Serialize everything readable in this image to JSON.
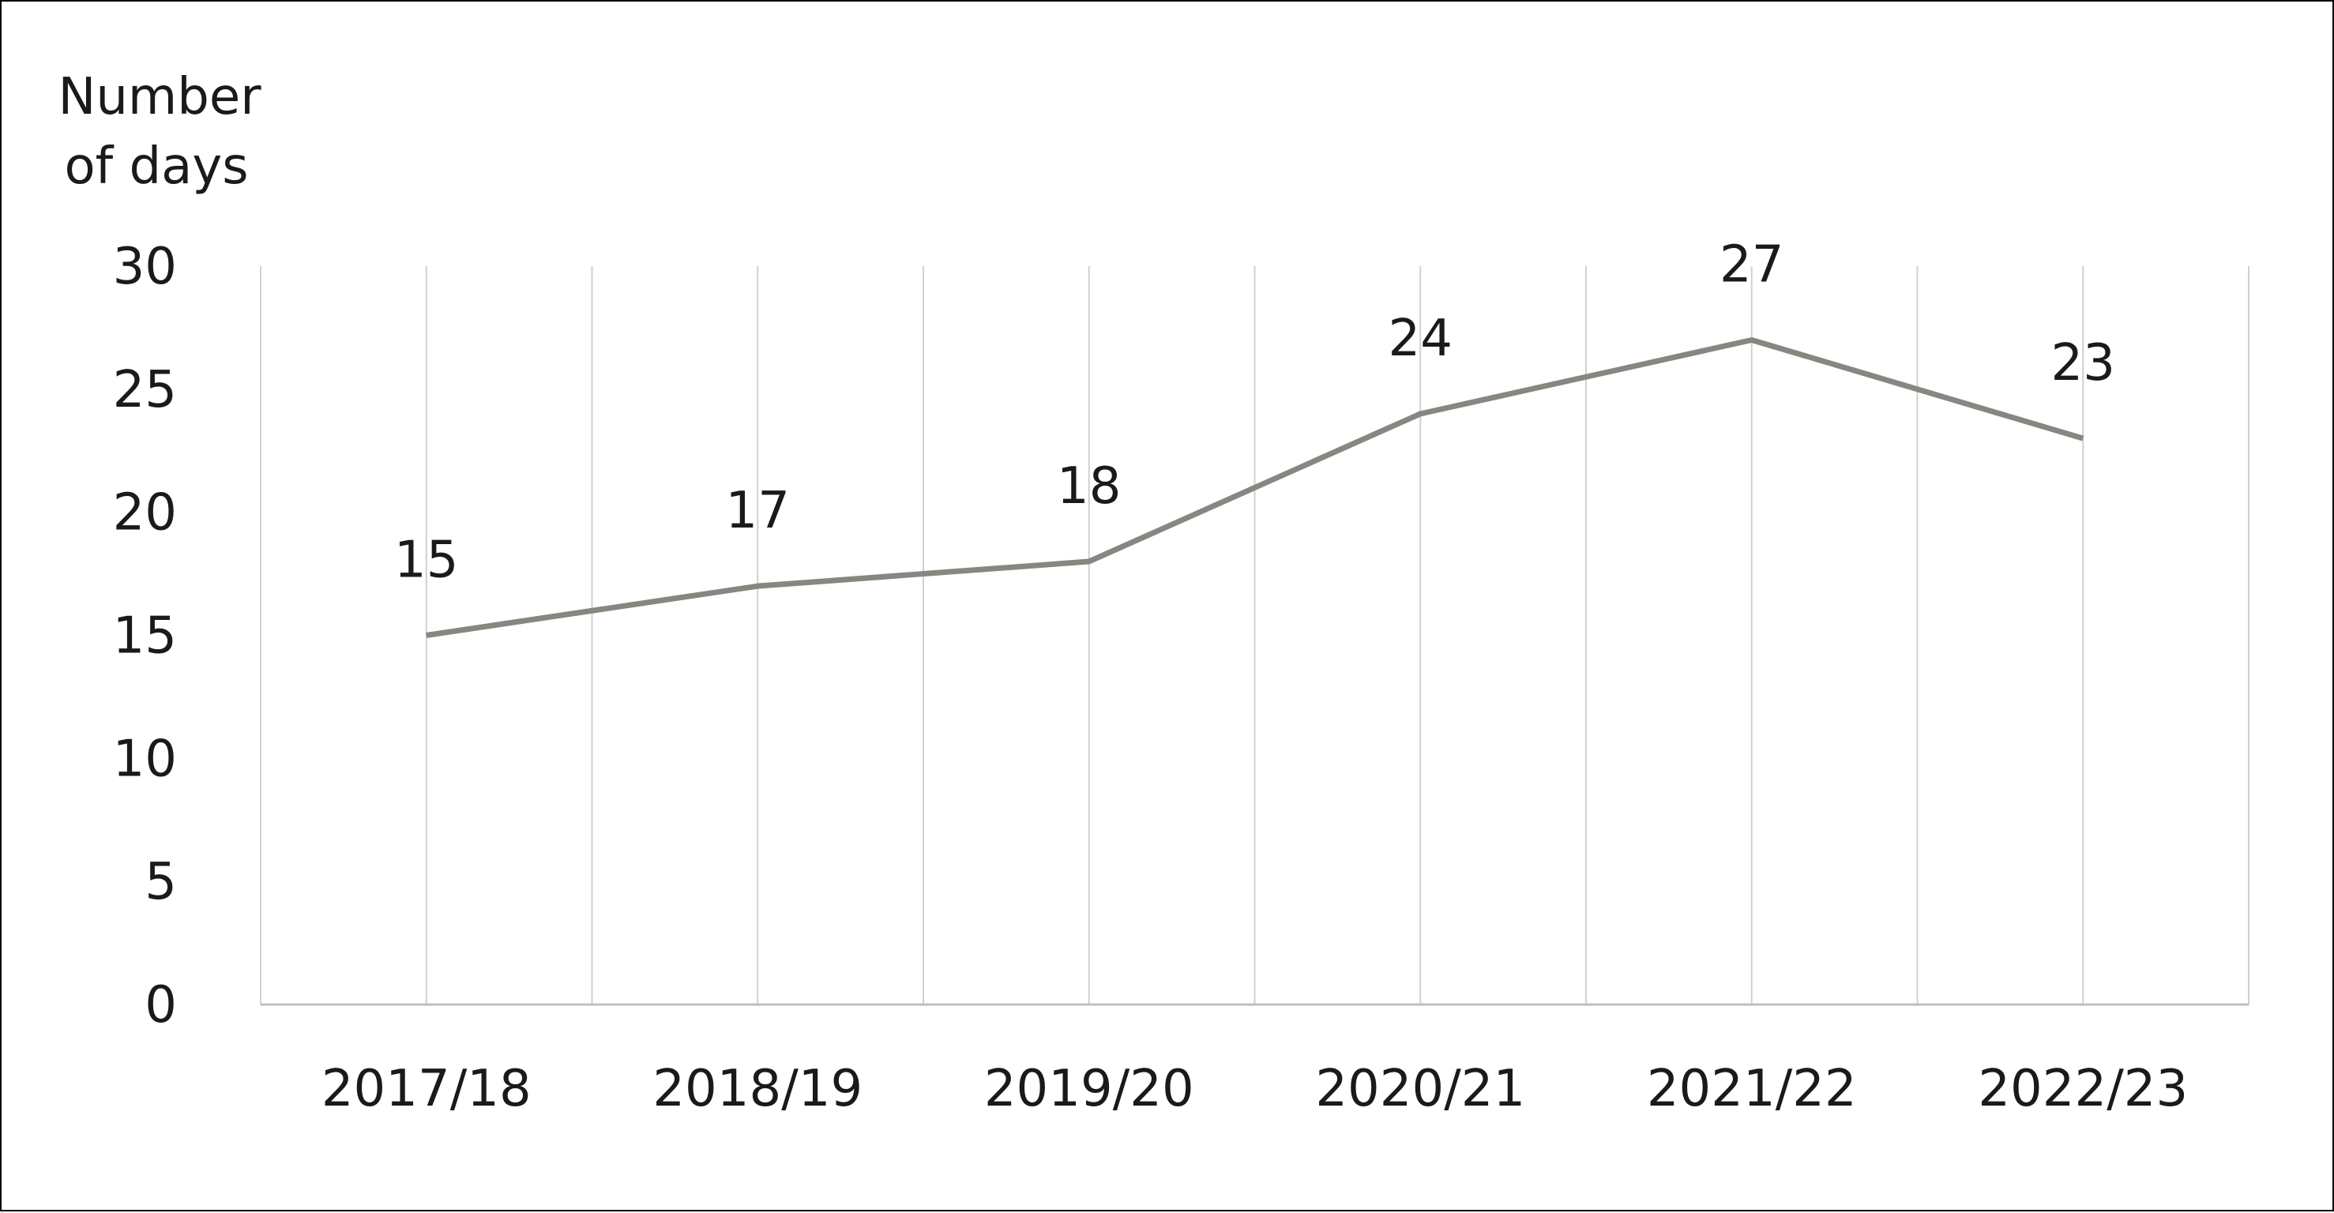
{
  "chart_data": {
    "type": "line",
    "title": "",
    "xlabel": "",
    "ylabel": [
      "Number",
      "of days"
    ],
    "categories": [
      "2017/18",
      "2018/19",
      "2019/20",
      "2020/21",
      "2021/22",
      "2022/23"
    ],
    "series": [
      {
        "name": "",
        "values": [
          15,
          17,
          18,
          24,
          27,
          23
        ],
        "data_labels": [
          "15",
          "17",
          "18",
          "24",
          "27",
          "23"
        ],
        "color": "#898580"
      }
    ],
    "y_ticks": [
      "0",
      "5",
      "10",
      "15",
      "20",
      "25",
      "30"
    ],
    "ylim": [
      0,
      30
    ],
    "grid": "vertical",
    "legend": "none",
    "colors": {
      "gridline": "#d0d0d0",
      "axis": "#bfbfbf",
      "text": "#1a1a1a",
      "frame": "#000000"
    }
  }
}
